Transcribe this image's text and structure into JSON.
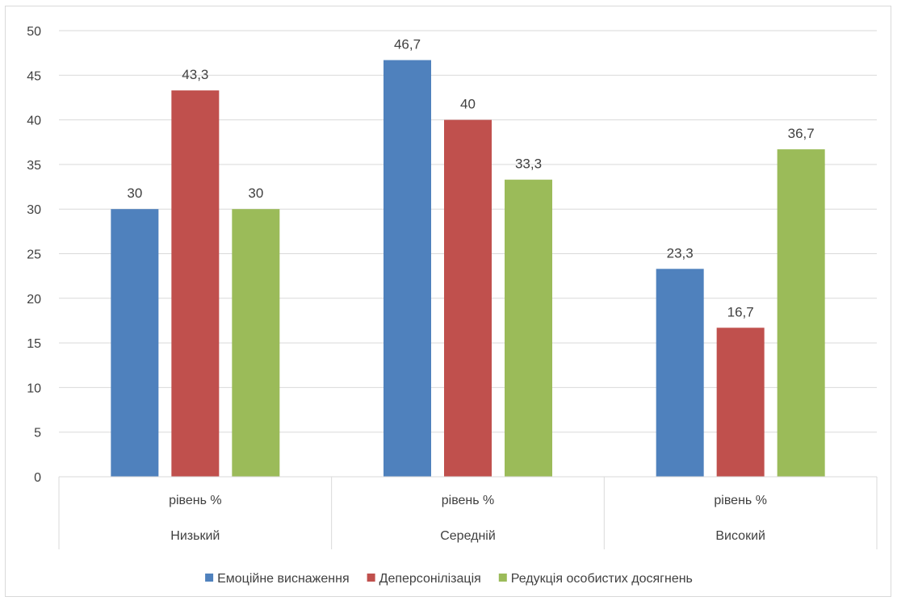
{
  "chart_data": {
    "type": "bar",
    "categories": [
      {
        "sub": "рівень %",
        "group": "Низький"
      },
      {
        "sub": "рівень %",
        "group": "Середній"
      },
      {
        "sub": "рівень %",
        "group": "Високий"
      }
    ],
    "series": [
      {
        "name": "Емоційне виснаження",
        "color": "#4f81bd",
        "values": [
          30,
          46.7,
          23.3
        ],
        "labels": [
          "30",
          "46,7",
          "23,3"
        ]
      },
      {
        "name": "Деперсонілізація",
        "color": "#c0504d",
        "values": [
          43.3,
          40,
          16.7
        ],
        "labels": [
          "43,3",
          "40",
          "16,7"
        ]
      },
      {
        "name": "Редукція особистих досягнень",
        "color": "#9bbb59",
        "values": [
          30,
          33.3,
          36.7
        ],
        "labels": [
          "30",
          "33,3",
          "36,7"
        ]
      }
    ],
    "y_ticks": [
      "0",
      "5",
      "10",
      "15",
      "20",
      "25",
      "30",
      "35",
      "40",
      "45",
      "50"
    ],
    "ylim": [
      0,
      50
    ],
    "grid": true,
    "legend_position": "bottom",
    "title": "",
    "xlabel": "",
    "ylabel": ""
  }
}
